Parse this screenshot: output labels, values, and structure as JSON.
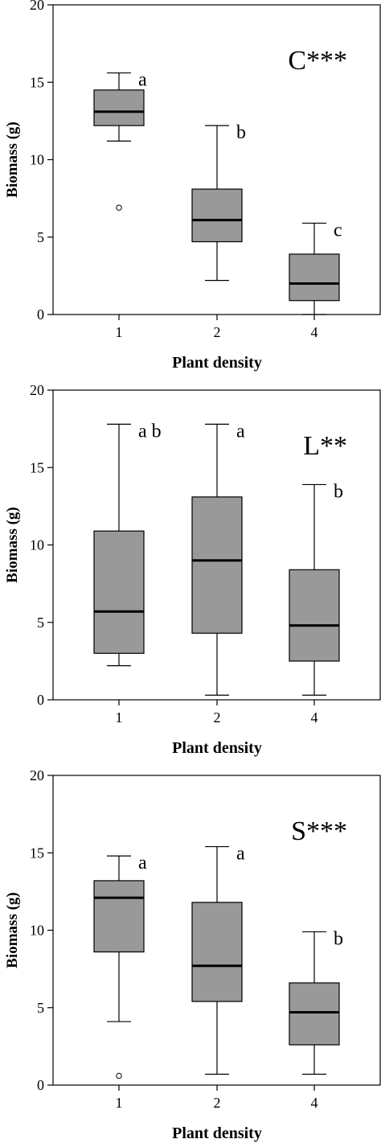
{
  "chart_data": [
    {
      "type": "box",
      "panel_label": "C***",
      "xlabel": "Plant density",
      "ylabel": "Biomass (g)",
      "ylim": [
        0,
        20
      ],
      "yticks": [
        0,
        5,
        10,
        15,
        20
      ],
      "categories": [
        "1",
        "2",
        "4"
      ],
      "boxes": [
        {
          "min": 11.2,
          "q1": 12.2,
          "median": 13.1,
          "q3": 14.5,
          "max": 15.6,
          "outliers": [
            6.9
          ],
          "letter": "a"
        },
        {
          "min": 2.2,
          "q1": 4.7,
          "median": 6.1,
          "q3": 8.1,
          "max": 12.2,
          "outliers": [],
          "letter": "b"
        },
        {
          "min": 0.0,
          "q1": 0.9,
          "median": 2.0,
          "q3": 3.9,
          "max": 5.9,
          "outliers": [],
          "letter": "c"
        }
      ],
      "box_color": "#999999"
    },
    {
      "type": "box",
      "panel_label": "L**",
      "xlabel": "Plant density",
      "ylabel": "Biomass (g)",
      "ylim": [
        0,
        20
      ],
      "yticks": [
        0,
        5,
        10,
        15,
        20
      ],
      "categories": [
        "1",
        "2",
        "4"
      ],
      "boxes": [
        {
          "min": 2.2,
          "q1": 3.0,
          "median": 5.7,
          "q3": 10.9,
          "max": 17.8,
          "outliers": [],
          "letter": "a b"
        },
        {
          "min": 0.3,
          "q1": 4.3,
          "median": 9.0,
          "q3": 13.1,
          "max": 17.8,
          "outliers": [],
          "letter": "a"
        },
        {
          "min": 0.3,
          "q1": 2.5,
          "median": 4.8,
          "q3": 8.4,
          "max": 13.9,
          "outliers": [],
          "letter": "b"
        }
      ],
      "box_color": "#999999"
    },
    {
      "type": "box",
      "panel_label": "S***",
      "xlabel": "Plant density",
      "ylabel": "Biomass (g)",
      "ylim": [
        0,
        20
      ],
      "yticks": [
        0,
        5,
        10,
        15,
        20
      ],
      "categories": [
        "1",
        "2",
        "4"
      ],
      "boxes": [
        {
          "min": 4.1,
          "q1": 8.6,
          "median": 12.1,
          "q3": 13.2,
          "max": 14.8,
          "outliers": [
            0.6
          ],
          "letter": "a"
        },
        {
          "min": 0.7,
          "q1": 5.4,
          "median": 7.7,
          "q3": 11.8,
          "max": 15.4,
          "outliers": [],
          "letter": "a"
        },
        {
          "min": 0.7,
          "q1": 2.6,
          "median": 4.7,
          "q3": 6.6,
          "max": 9.9,
          "outliers": [],
          "letter": "b"
        }
      ],
      "box_color": "#999999"
    }
  ]
}
